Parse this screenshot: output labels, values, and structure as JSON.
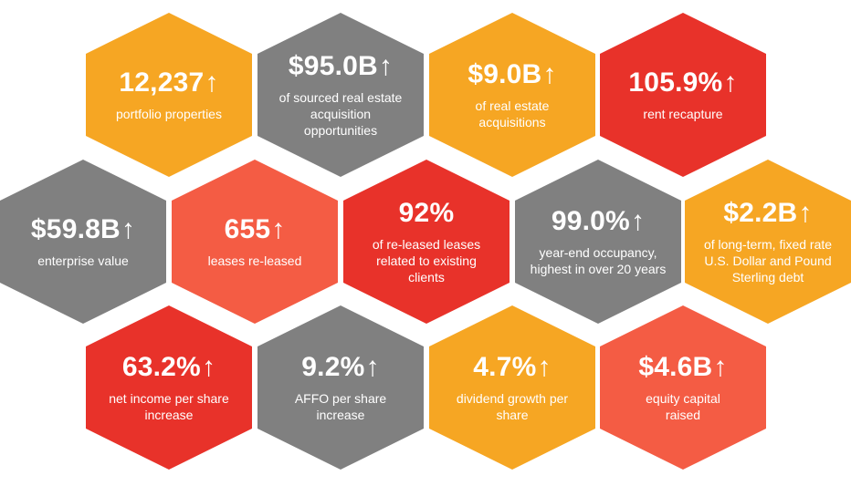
{
  "colors": {
    "orange": "#f6a623",
    "gray": "#808080",
    "red": "#e8322a",
    "coral": "#f45c44",
    "text": "#ffffff"
  },
  "tiles": [
    {
      "value": "12,237",
      "arrow": "↑",
      "desc": "portfolio properties",
      "color": "orange"
    },
    {
      "value": "$95.0B",
      "arrow": "↑",
      "desc": "of sourced real estate acquisition opportunities",
      "color": "gray"
    },
    {
      "value": "$9.0B",
      "arrow": "↑",
      "desc": "of real estate acquisitions",
      "color": "orange"
    },
    {
      "value": "105.9%",
      "arrow": "↑",
      "desc": "rent recapture",
      "color": "red"
    },
    {
      "value": "$59.8B",
      "arrow": "↑",
      "desc": "enterprise value",
      "color": "gray"
    },
    {
      "value": "655",
      "arrow": "↑",
      "desc": "leases re-leased",
      "color": "coral"
    },
    {
      "value": "92%",
      "arrow": "",
      "desc": "of re-leased leases related to existing clients",
      "color": "red"
    },
    {
      "value": "99.0%",
      "arrow": "↑",
      "desc": "year-end occupancy, highest in over 20 years",
      "color": "gray"
    },
    {
      "value": "$2.2B",
      "arrow": "↑",
      "desc": "of long-term, fixed rate U.S. Dollar and Pound Sterling debt",
      "color": "orange"
    },
    {
      "value": "63.2%",
      "arrow": "↑",
      "desc": "net income per share increase",
      "color": "red"
    },
    {
      "value": "9.2%",
      "arrow": "↑",
      "desc": "AFFO per share increase",
      "color": "gray"
    },
    {
      "value": "4.7%",
      "arrow": "↑",
      "desc": "dividend growth per share",
      "color": "orange"
    },
    {
      "value": "$4.6B",
      "arrow": "↑",
      "desc": "equity capital raised",
      "color": "coral"
    }
  ]
}
